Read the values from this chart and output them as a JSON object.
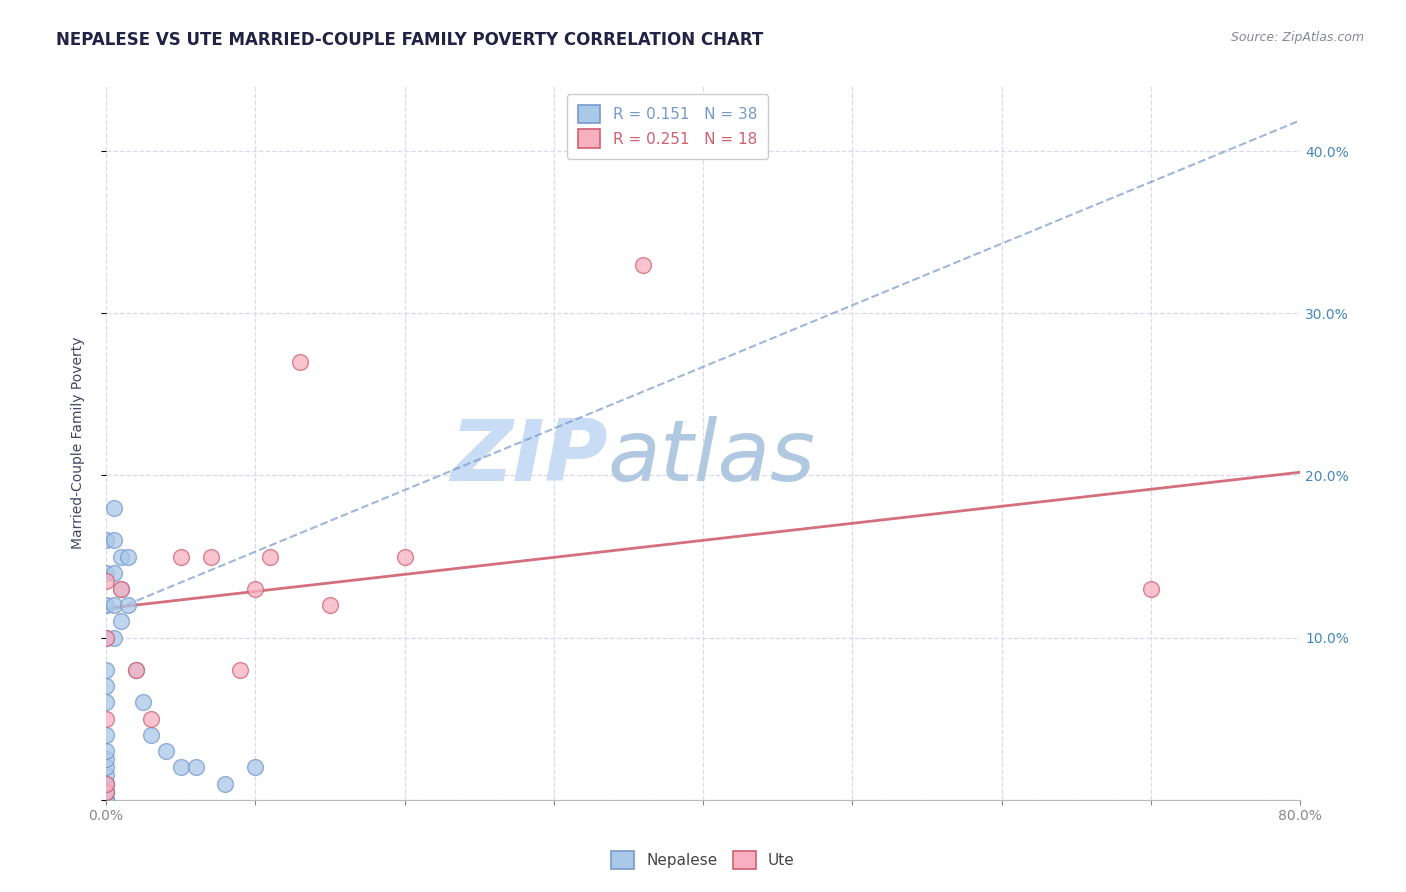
{
  "title": "NEPALESE VS UTE MARRIED-COUPLE FAMILY POVERTY CORRELATION CHART",
  "source_text": "Source: ZipAtlas.com",
  "ylabel": "Married-Couple Family Poverty",
  "xlim": [
    0.0,
    0.8
  ],
  "ylim": [
    0.0,
    0.44
  ],
  "xticks": [
    0.0,
    0.1,
    0.2,
    0.3,
    0.4,
    0.5,
    0.6,
    0.7,
    0.8
  ],
  "xtick_labels": [
    "0.0%",
    "",
    "",
    "",
    "",
    "",
    "",
    "",
    "80.0%"
  ],
  "yticks": [
    0.0,
    0.1,
    0.2,
    0.3,
    0.4
  ],
  "ytick_labels": [
    "",
    "10.0%",
    "20.0%",
    "30.0%",
    "40.0%"
  ],
  "nepalese_color": "#aac8e8",
  "ute_color": "#f8b0c0",
  "nepalese_R": 0.151,
  "nepalese_N": 38,
  "ute_R": 0.251,
  "ute_N": 18,
  "nepalese_scatter_x": [
    0.0,
    0.0,
    0.0,
    0.0,
    0.0,
    0.0,
    0.0,
    0.0,
    0.0,
    0.0,
    0.0,
    0.0,
    0.0,
    0.0,
    0.0,
    0.0,
    0.0,
    0.0,
    0.0,
    0.0,
    0.005,
    0.005,
    0.005,
    0.005,
    0.005,
    0.01,
    0.01,
    0.01,
    0.015,
    0.015,
    0.02,
    0.025,
    0.03,
    0.04,
    0.05,
    0.06,
    0.08,
    0.1
  ],
  "nepalese_scatter_y": [
    0.0,
    0.0,
    0.0,
    0.0,
    0.005,
    0.005,
    0.01,
    0.01,
    0.015,
    0.02,
    0.025,
    0.03,
    0.04,
    0.06,
    0.07,
    0.08,
    0.1,
    0.12,
    0.14,
    0.16,
    0.1,
    0.12,
    0.14,
    0.16,
    0.18,
    0.11,
    0.13,
    0.15,
    0.12,
    0.15,
    0.08,
    0.06,
    0.04,
    0.03,
    0.02,
    0.02,
    0.01,
    0.02
  ],
  "ute_scatter_x": [
    0.0,
    0.0,
    0.0,
    0.0,
    0.0,
    0.01,
    0.02,
    0.03,
    0.05,
    0.07,
    0.09,
    0.1,
    0.11,
    0.13,
    0.15,
    0.2,
    0.36,
    0.7
  ],
  "ute_scatter_y": [
    0.005,
    0.01,
    0.05,
    0.1,
    0.135,
    0.13,
    0.08,
    0.05,
    0.15,
    0.15,
    0.08,
    0.13,
    0.15,
    0.27,
    0.12,
    0.15,
    0.33,
    0.13
  ],
  "background_color": "#ffffff",
  "plot_bg_color": "#ffffff",
  "grid_color": "#d8d8ee",
  "watermark_zip": "ZIP",
  "watermark_atlas": "atlas",
  "watermark_color_zip": "#c8ddf0",
  "watermark_color_atlas": "#b8cce0",
  "title_fontsize": 12,
  "axis_label_fontsize": 10,
  "tick_fontsize": 10,
  "legend_fontsize": 11,
  "nepalese_trend_color": "#7799cc",
  "ute_trend_color": "#d06070",
  "nepalese_trend_intercept": 0.115,
  "nepalese_trend_slope": 0.38,
  "ute_trend_intercept": 0.118,
  "ute_trend_slope": 0.105
}
